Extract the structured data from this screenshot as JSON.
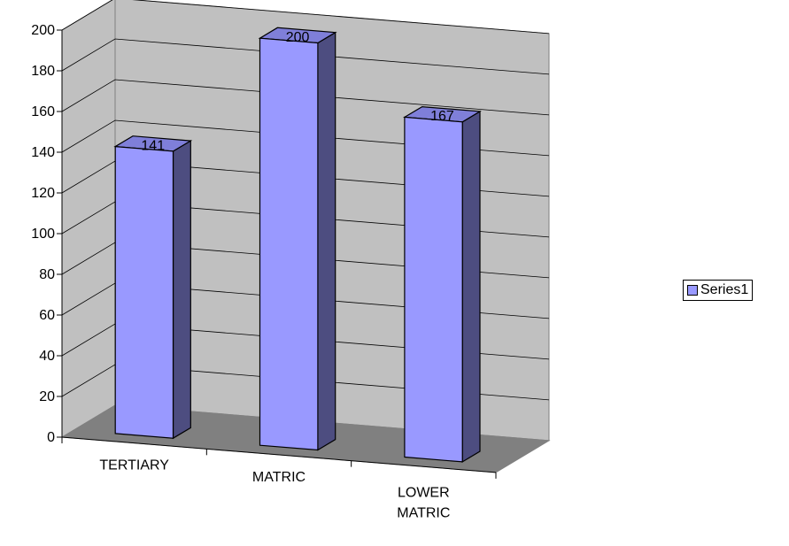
{
  "chart_data": {
    "type": "bar",
    "title": "",
    "xlabel": "",
    "ylabel": "",
    "categories": [
      "TERTIARY",
      "MATRIC",
      "LOWER MATRIC"
    ],
    "series": [
      {
        "name": "Series1",
        "values": [
          141,
          200,
          167
        ]
      }
    ],
    "ylim": [
      0,
      200
    ],
    "ytick_step": 20,
    "y_ticks": [
      "0",
      "20",
      "40",
      "60",
      "80",
      "100",
      "120",
      "140",
      "160",
      "180",
      "200"
    ],
    "data_labels": [
      "141",
      "200",
      "167"
    ],
    "grid": true,
    "legend_position": "right",
    "three_d": true,
    "colors": {
      "bar_front": "#9999ff",
      "bar_side": "#4d4d80",
      "bar_top": "#7f7fd9",
      "back_wall": "#c0c0c0",
      "side_wall": "#c0c0c0",
      "floor": "#808080",
      "gridline": "#000000"
    }
  }
}
